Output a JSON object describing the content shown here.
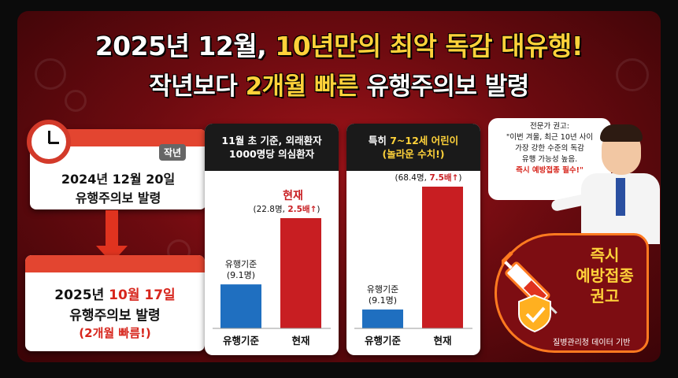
{
  "header": {
    "line1_part1": "2025년 12월, ",
    "line1_highlight": "10년만의 최악 독감 대유행!",
    "line2_part1": "작년보다 ",
    "line2_highlight": "2개월 빠른",
    "line2_part2": " 유행주의보 발령"
  },
  "timeline": {
    "last_year_tag": "작년",
    "last_year_date": "2024년 12월 20일",
    "last_year_event": "유행주의보 발령",
    "this_year_date_prefix": "2025년 ",
    "this_year_date_highlight": "10월 17일",
    "this_year_event": "유행주의보 발령",
    "this_year_note": "(2개월 빠름!)"
  },
  "chart_data": [
    {
      "type": "bar",
      "title_line1": "11월 초 기준, 외래환자",
      "title_line2": "1000명당 의심환자",
      "categories": [
        "유행기준",
        "현재"
      ],
      "values": [
        9.1,
        22.8
      ],
      "colors": [
        "#1f6fc0",
        "#c81e22"
      ],
      "labels": [
        {
          "name": "유행기준",
          "value_text": "(9.1명)"
        },
        {
          "name": "현재",
          "value_text": "(22.8명, ",
          "emph": "2.5배↑",
          "close": ")"
        }
      ]
    },
    {
      "type": "bar",
      "title_line1_prefix": "특히 ",
      "title_line1_highlight": "7~12세 어린이",
      "title_line2": "(놀라운 수치!)",
      "categories": [
        "유행기준",
        "현재"
      ],
      "values": [
        9.1,
        68.4
      ],
      "colors": [
        "#1f6fc0",
        "#c81e22"
      ],
      "labels": [
        {
          "name": "유행기준",
          "value_text": "(9.1명)"
        },
        {
          "name": "현재",
          "value_text": "(68.4명, ",
          "emph": "7.5배↑",
          "close": ")"
        }
      ]
    }
  ],
  "expert": {
    "title": "전문가 권고:",
    "line1": "\"이번 겨울, 최근 10년 사이",
    "line2": "가장 강한 수준의 독감",
    "line3": "유행 가능성 높음.",
    "line4": "즉시 예방접종 필수!\""
  },
  "vaccination": {
    "line1": "즉시",
    "line2": "예방접종",
    "line3": "권고"
  },
  "source": "질병관리청 데이터 기반",
  "colors": {
    "accent_yellow": "#ffd23a",
    "red": "#c81e22",
    "blue": "#1f6fc0"
  }
}
